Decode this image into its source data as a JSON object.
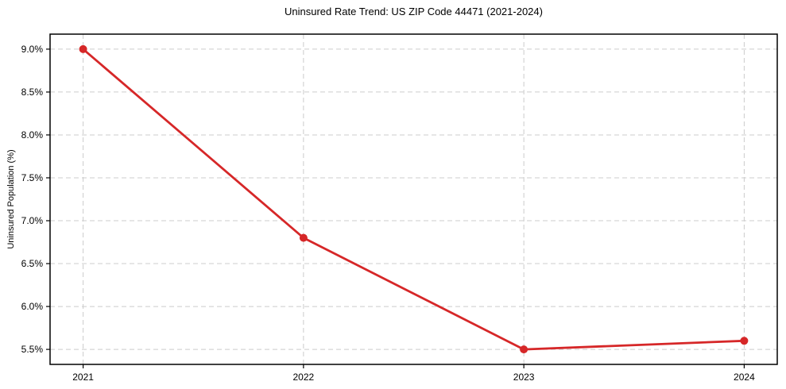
{
  "chart": {
    "title": "Uninsured Rate Trend: US ZIP Code 44471 (2021-2024)",
    "ylabel": "Uninsured Population (%)"
  },
  "chart_data": {
    "type": "line",
    "title": "Uninsured Rate Trend: US ZIP Code 44471 (2021-2024)",
    "xlabel": "",
    "ylabel": "Uninsured Population (%)",
    "x": [
      2021,
      2022,
      2023,
      2024
    ],
    "values": [
      9.0,
      6.8,
      5.5,
      5.6
    ],
    "xtick_labels": [
      "2021",
      "2022",
      "2023",
      "2024"
    ],
    "yticks": [
      5.5,
      6.0,
      6.5,
      7.0,
      7.5,
      8.0,
      8.5,
      9.0
    ],
    "ytick_labels": [
      "5.5%",
      "6.0%",
      "6.5%",
      "7.0%",
      "7.5%",
      "8.0%",
      "8.5%",
      "9.0%"
    ],
    "xlim": [
      2020.85,
      2024.15
    ],
    "ylim": [
      5.325,
      9.175
    ],
    "grid": true,
    "legend": false,
    "marker": "circle",
    "line_color": "#d62728",
    "grid_color": "#cccccc",
    "axis_color": "#000000",
    "text_color": "#000000",
    "background": "#ffffff"
  }
}
